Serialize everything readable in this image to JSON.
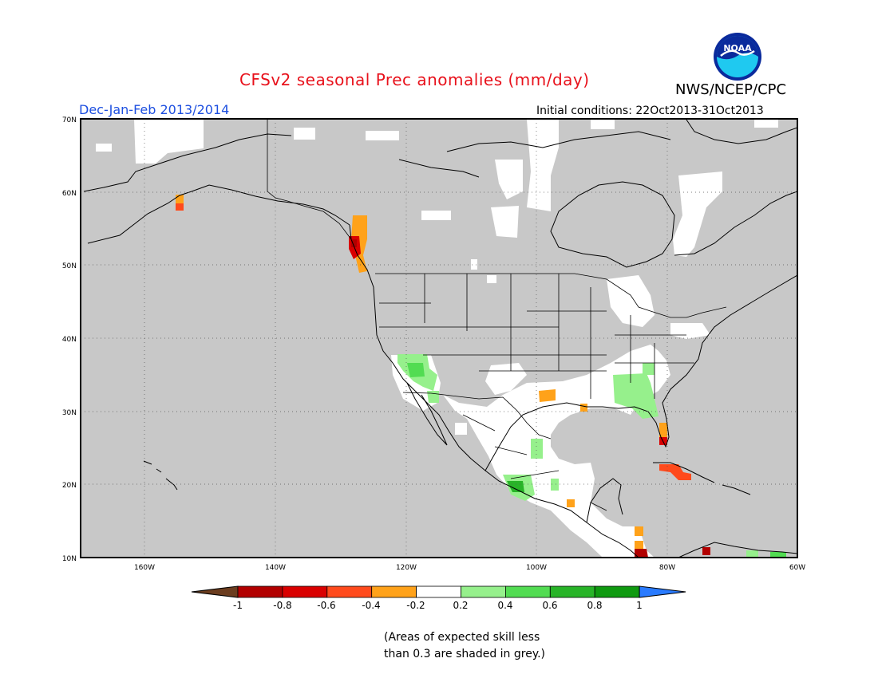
{
  "header": {
    "title": "CFSv2 seasonal Prec anomalies (mm/day)",
    "agency": "NWS/NCEP/CPC",
    "period": "Dec-Jan-Feb 2013/2014",
    "initial_conditions": "Initial conditions: 22Oct2013-31Oct2013",
    "logo_text": "NOAA"
  },
  "map": {
    "lon_range": [
      -172,
      -60
    ],
    "lat_range": [
      10,
      70
    ],
    "grey_color": "#c8c8c8",
    "lat_labels": [
      "70N",
      "60N",
      "50N",
      "40N",
      "30N",
      "20N",
      "10N"
    ],
    "lon_labels": [
      "160W",
      "140W",
      "120W",
      "100W",
      "80W",
      "60W"
    ]
  },
  "colorbar": {
    "labels": [
      "-1",
      "-0.8",
      "-0.6",
      "-0.4",
      "-0.2",
      "0.2",
      "0.4",
      "0.6",
      "0.8",
      "1"
    ],
    "colors": [
      "#6b3d1f",
      "#b20000",
      "#d90000",
      "#ff4a1c",
      "#ffa21a",
      "#ffffff",
      "#96f08c",
      "#52dc52",
      "#28b428",
      "#0f9a10",
      "#2a7bff"
    ]
  },
  "footnote": {
    "line1": "(Areas of expected skill less",
    "line2": "than 0.3 are shaded in grey.)"
  }
}
